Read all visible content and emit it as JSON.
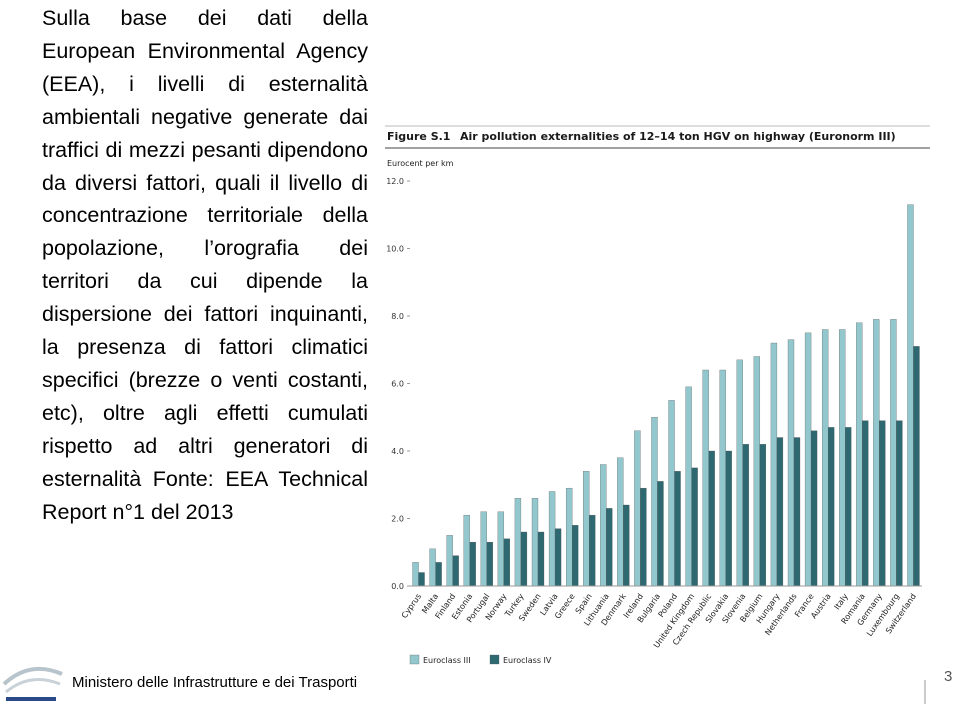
{
  "text": "Sulla base dei dati della European Environmental Agency (EEA), i livelli di esternalità ambientali negative generate dai traffici di mezzi pesanti dipendono da diversi fattori, quali il livello di concentrazione territoriale della popolazione, l’orografia dei territori da cui dipende la dispersione dei fattori inquinanti, la presenza di fattori climatici specifici (brezze o venti costanti, etc), oltre agli effetti cumulati rispetto ad altri generatori di esternalità Fonte: EEA Technical Report n°1 del 2013",
  "footer": "Ministero delle Infrastrutture e dei Trasporti",
  "page_number": "3",
  "chart_data": {
    "type": "bar",
    "figure_label": "Figure S.1",
    "title": "Air pollution externalities of 12–14 ton HGV on highway (Euronorm III)",
    "y_label": "Eurocent per km",
    "categories": [
      "Cyprus",
      "Malta",
      "Finland",
      "Estonia",
      "Portugal",
      "Norway",
      "Turkey",
      "Sweden",
      "Latvia",
      "Greece",
      "Spain",
      "Lithuania",
      "Denmark",
      "Ireland",
      "Bulgaria",
      "Poland",
      "United Kingdom",
      "Czech Republic",
      "Slovakia",
      "Slovenia",
      "Belgium",
      "Hungary",
      "Netherlands",
      "France",
      "Austria",
      "Italy",
      "Romania",
      "Germany",
      "Luxembourg",
      "Switzerland"
    ],
    "series": [
      {
        "name": "Euroclass III",
        "color": "#92c8cd",
        "values": [
          0.7,
          1.1,
          1.5,
          2.1,
          2.2,
          2.2,
          2.6,
          2.6,
          2.8,
          2.9,
          3.4,
          3.6,
          3.8,
          4.6,
          5.0,
          5.5,
          5.9,
          6.4,
          6.4,
          6.7,
          6.8,
          7.2,
          7.3,
          7.5,
          7.6,
          7.6,
          7.8,
          7.9,
          7.9,
          11.3
        ]
      },
      {
        "name": "Euroclass IV",
        "color": "#2e6870",
        "values": [
          0.4,
          0.7,
          0.9,
          1.3,
          1.3,
          1.4,
          1.6,
          1.6,
          1.7,
          1.8,
          2.1,
          2.3,
          2.4,
          2.9,
          3.1,
          3.4,
          3.5,
          4.0,
          4.0,
          4.2,
          4.2,
          4.4,
          4.4,
          4.6,
          4.7,
          4.7,
          4.9,
          4.9,
          4.9,
          7.1
        ]
      }
    ],
    "ylim": [
      0,
      12
    ],
    "yticks": [
      {
        "value": 0,
        "label": "0.0"
      },
      {
        "value": 2,
        "label": "2.0"
      },
      {
        "value": 4,
        "label": "4.0"
      },
      {
        "value": 6,
        "label": "6.0"
      },
      {
        "value": 8,
        "label": "8.0"
      },
      {
        "value": 10,
        "label": "10.0"
      },
      {
        "value": 12,
        "label": "12.0"
      }
    ],
    "grid": false,
    "legend": "bottom"
  }
}
